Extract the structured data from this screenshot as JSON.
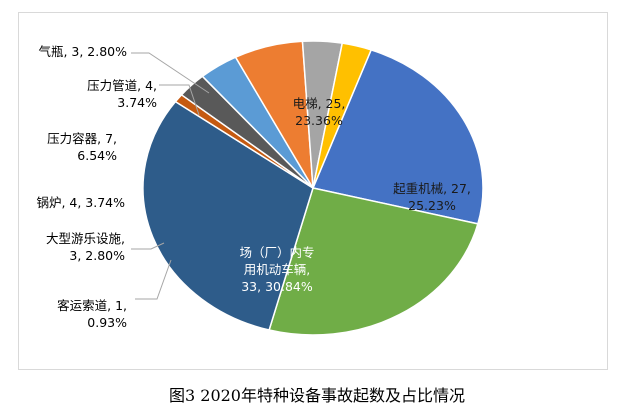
{
  "caption": "图3 2020年特种设备事故起数及占比情况",
  "chart_data": {
    "type": "pie",
    "start_angle_deg": -70,
    "direction": "clockwise",
    "slices": [
      {
        "name": "电梯",
        "value": 25,
        "percent": "23.36%",
        "color": "#4472C4",
        "label_lines": [
          "电梯, 25,",
          "23.36%"
        ]
      },
      {
        "name": "起重机械",
        "value": 27,
        "percent": "25.23%",
        "color": "#70AD47",
        "label_lines": [
          "起重机械, 27,",
          "25.23%"
        ]
      },
      {
        "name": "场（厂）内专用机动车辆",
        "value": 33,
        "percent": "30.84%",
        "color": "#2E5C8A",
        "label_lines": [
          "场（厂）内专",
          "用机动车辆,",
          "33, 30.84%"
        ]
      },
      {
        "name": "客运索道",
        "value": 1,
        "percent": "0.93%",
        "color": "#C55A11",
        "label_lines": [
          "客运索道, 1,",
          "0.93%"
        ]
      },
      {
        "name": "大型游乐设施",
        "value": 3,
        "percent": "2.80%",
        "color": "#595959",
        "label_lines": [
          "大型游乐设施,",
          "3, 2.80%"
        ]
      },
      {
        "name": "锅炉",
        "value": 4,
        "percent": "3.74%",
        "color": "#5B9BD5",
        "label_lines": [
          "锅炉, 4, 3.74%"
        ]
      },
      {
        "name": "压力容器",
        "value": 7,
        "percent": "6.54%",
        "color": "#ED7D31",
        "label_lines": [
          "压力容器, 7,",
          "6.54%"
        ]
      },
      {
        "name": "压力管道",
        "value": 4,
        "percent": "3.74%",
        "color": "#A5A5A5",
        "label_lines": [
          "压力管道, 4,",
          "3.74%"
        ]
      },
      {
        "name": "气瓶",
        "value": 3,
        "percent": "2.80%",
        "color": "#FFC000",
        "label_lines": [
          "气瓶, 3, 2.80%"
        ]
      }
    ]
  }
}
